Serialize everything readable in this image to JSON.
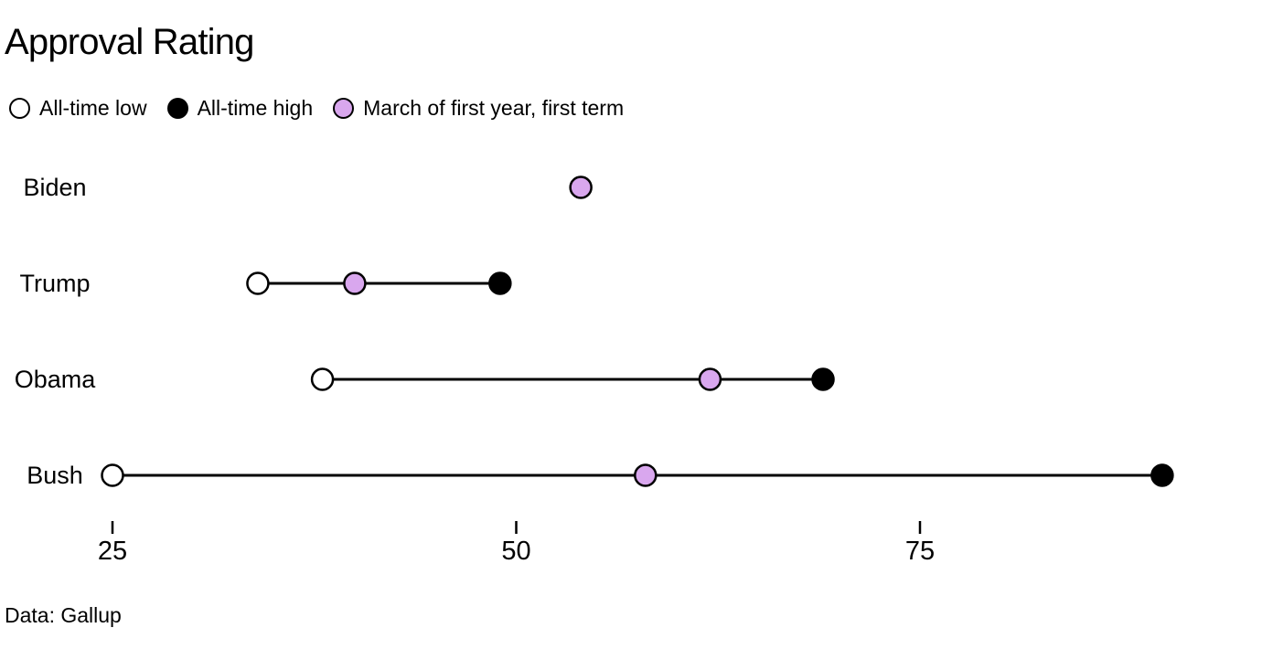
{
  "title": "Approval Rating",
  "legend": {
    "items": [
      {
        "label": "All-time low",
        "fill": "#ffffff"
      },
      {
        "label": "All-time high",
        "fill": "#000000"
      },
      {
        "label": "March of first year, first term",
        "fill": "#d9a7ee"
      }
    ]
  },
  "colors": {
    "low": "#ffffff",
    "high": "#000000",
    "march": "#d9a7ee",
    "stroke": "#000000",
    "text": "#000000",
    "background": "#ffffff"
  },
  "footer": {
    "source": "Data: Gallup"
  },
  "chart_data": {
    "type": "dumbbell",
    "orientation": "horizontal",
    "title": "Approval Rating",
    "categories": [
      "Biden",
      "Trump",
      "Obama",
      "Bush"
    ],
    "series": [
      {
        "name": "All-time low",
        "values": [
          null,
          34,
          38,
          25
        ]
      },
      {
        "name": "All-time high",
        "values": [
          null,
          49,
          69,
          90
        ]
      },
      {
        "name": "March of first year, first term",
        "values": [
          54,
          40,
          62,
          58
        ]
      }
    ],
    "x_ticks": [
      25,
      50,
      75
    ],
    "x_domain": [
      25,
      96
    ],
    "grid": false,
    "legend_position": "top",
    "source": "Data: Gallup"
  }
}
